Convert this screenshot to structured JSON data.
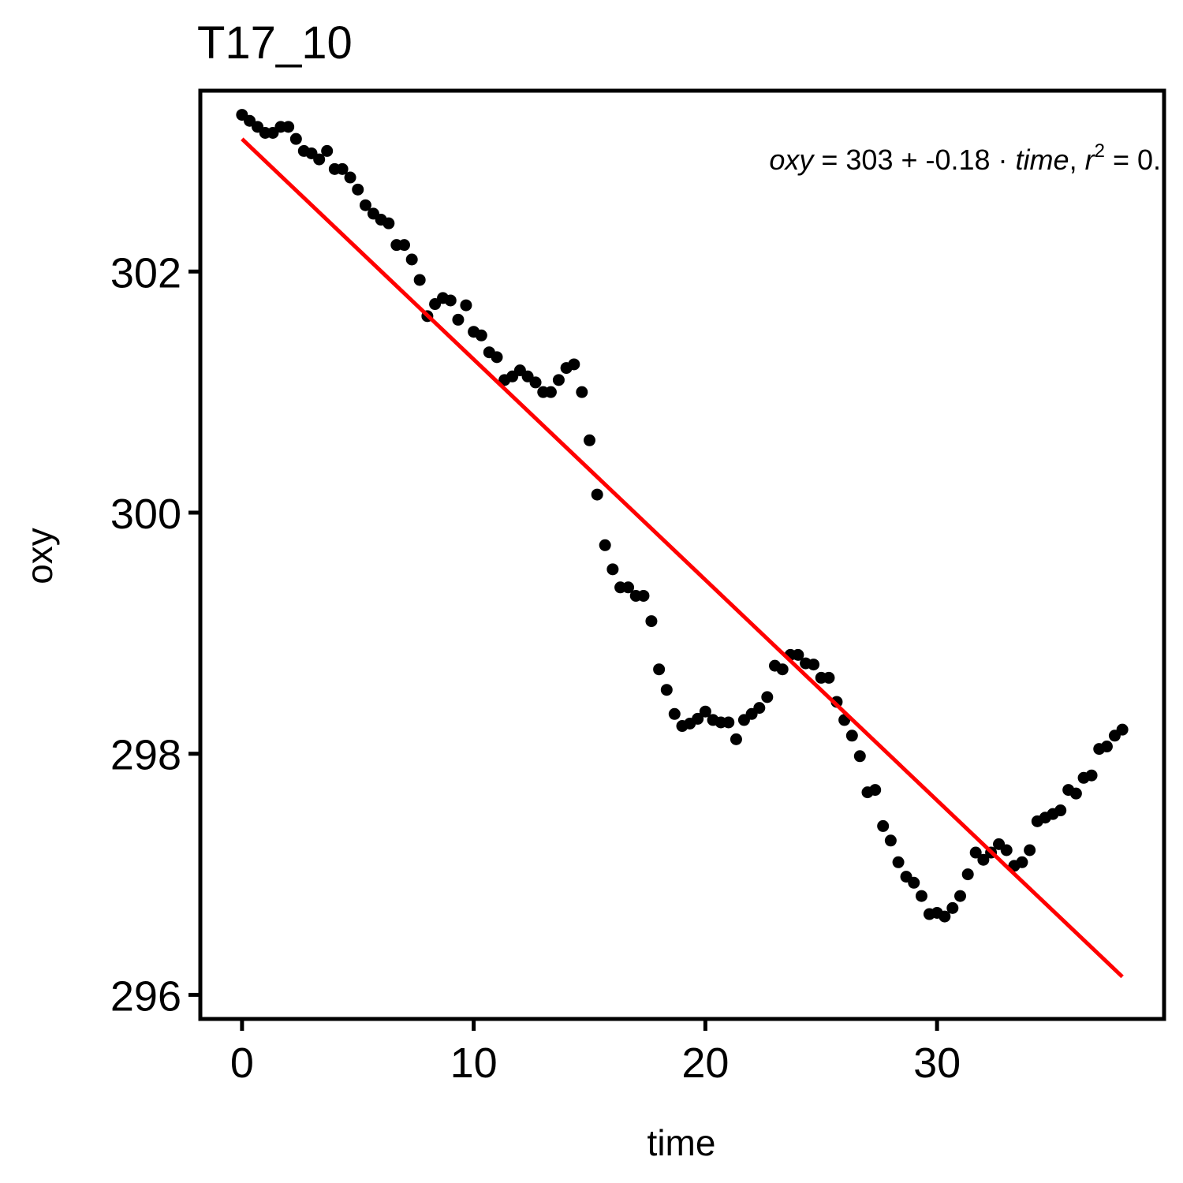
{
  "chart_data": {
    "type": "scatter",
    "title": "T17_10",
    "xlabel": "time",
    "ylabel": "oxy",
    "xlim": [
      -1.8,
      39.8
    ],
    "ylim": [
      295.8,
      303.5
    ],
    "xticks": [
      0,
      10,
      20,
      30
    ],
    "yticks": [
      296,
      298,
      300,
      302
    ],
    "grid": false,
    "annotation": {
      "lhs": "oxy",
      "eq": " = 303 + -0.18 · ",
      "var": "time",
      "sep": ",  ",
      "r": "r",
      "exp": "2",
      "rhs": " = 0."
    },
    "fit_line": {
      "color": "#ff0000",
      "x": [
        0,
        38
      ],
      "y": [
        303.1,
        296.15
      ]
    },
    "points": {
      "color": "#000000",
      "x": [
        0,
        0.33,
        0.67,
        1,
        1.33,
        1.67,
        2,
        2.33,
        2.67,
        3,
        3.33,
        3.67,
        4,
        4.33,
        4.67,
        5,
        5.33,
        5.67,
        6,
        6.33,
        6.67,
        7,
        7.33,
        7.67,
        8,
        8.33,
        8.67,
        9,
        9.33,
        9.67,
        10,
        10.33,
        10.67,
        11,
        11.33,
        11.67,
        12,
        12.33,
        12.67,
        13,
        13.33,
        13.67,
        14,
        14.33,
        14.67,
        15,
        15.33,
        15.67,
        16,
        16.33,
        16.67,
        17,
        17.33,
        17.67,
        18,
        18.33,
        18.67,
        19,
        19.33,
        19.67,
        20,
        20.33,
        20.67,
        21,
        21.33,
        21.67,
        22,
        22.33,
        22.67,
        23,
        23.33,
        23.67,
        24,
        24.33,
        24.67,
        25,
        25.33,
        25.67,
        26,
        26.33,
        26.67,
        27,
        27.33,
        27.67,
        28,
        28.33,
        28.67,
        29,
        29.33,
        29.67,
        30,
        30.33,
        30.67,
        31,
        31.33,
        31.67,
        32,
        32.33,
        32.67,
        33,
        33.33,
        33.67,
        34,
        34.33,
        34.67,
        35,
        35.33,
        35.67,
        36,
        36.33,
        36.67,
        37,
        37.33,
        37.67,
        38
      ],
      "y": [
        303.3,
        303.25,
        303.2,
        303.15,
        303.15,
        303.2,
        303.2,
        303.1,
        303.0,
        302.98,
        302.93,
        303.0,
        302.85,
        302.85,
        302.78,
        302.68,
        302.55,
        302.48,
        302.43,
        302.4,
        302.22,
        302.22,
        302.1,
        301.93,
        301.63,
        301.73,
        301.78,
        301.76,
        301.6,
        301.72,
        301.5,
        301.47,
        301.33,
        301.29,
        301.1,
        301.13,
        301.18,
        301.13,
        301.08,
        301.0,
        301.0,
        301.1,
        301.2,
        301.23,
        301.0,
        300.6,
        300.15,
        299.73,
        299.53,
        299.38,
        299.38,
        299.31,
        299.31,
        299.1,
        298.7,
        298.53,
        298.33,
        298.23,
        298.25,
        298.29,
        298.35,
        298.28,
        298.26,
        298.26,
        298.12,
        298.28,
        298.33,
        298.38,
        298.47,
        298.73,
        298.7,
        298.82,
        298.82,
        298.75,
        298.74,
        298.63,
        298.63,
        298.43,
        298.28,
        298.15,
        297.98,
        297.68,
        297.7,
        297.4,
        297.28,
        297.1,
        296.98,
        296.93,
        296.82,
        296.67,
        296.68,
        296.65,
        296.72,
        296.82,
        297.0,
        297.18,
        297.12,
        297.18,
        297.25,
        297.2,
        297.07,
        297.1,
        297.2,
        297.44,
        297.47,
        297.5,
        297.53,
        297.7,
        297.67,
        297.8,
        297.82,
        298.04,
        298.06,
        298.15,
        298.2
      ]
    }
  }
}
